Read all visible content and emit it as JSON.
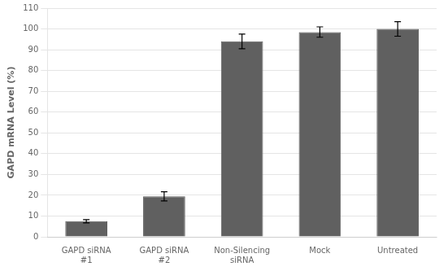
{
  "chart_data": {
    "type": "bar",
    "categories": [
      "GAPD siRNA\n#1",
      "GAPD siRNA\n#2",
      "Non-Silencing\nsiRNA",
      "Mock",
      "Untreated"
    ],
    "values": [
      7.5,
      19.5,
      94.0,
      98.5,
      100.0
    ],
    "errors": [
      0.8,
      2.2,
      3.5,
      2.5,
      3.5
    ],
    "color": "#606060",
    "ylabel": "GAPD mRNA Level (%)",
    "ylim": [
      0,
      110
    ],
    "yticks": [
      0,
      10,
      20,
      30,
      40,
      50,
      60,
      70,
      80,
      90,
      100,
      110
    ],
    "grid": true
  }
}
